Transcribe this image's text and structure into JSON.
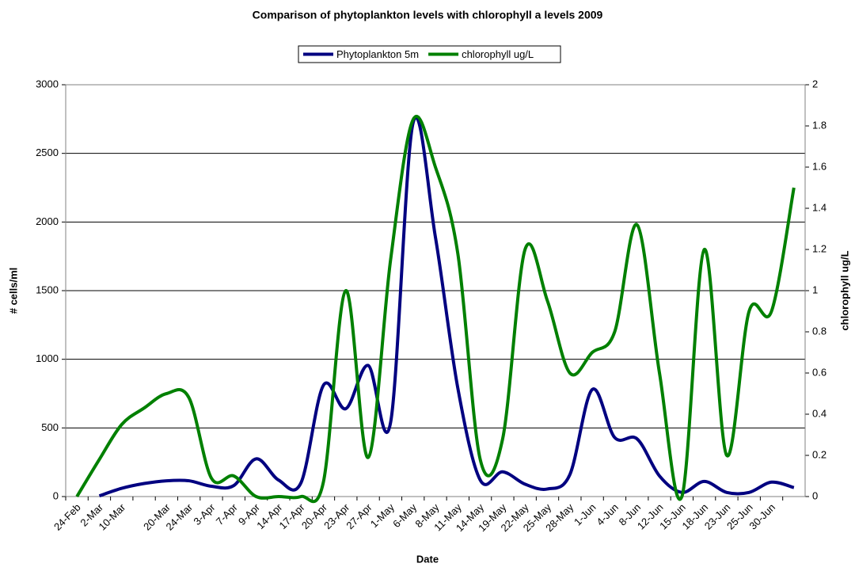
{
  "chart_data": {
    "type": "line",
    "title": "Comparison of phytoplankton levels with chlorophyll a levels 2009",
    "x_label": "Date",
    "y_label": "# cells/ml",
    "y2_label": "chlorophyll ug/L",
    "categories": [
      "24-Feb",
      "2-Mar",
      "10-Mar",
      null,
      "20-Mar",
      "24-Mar",
      "3-Apr",
      "7-Apr",
      "9-Apr",
      "14-Apr",
      "17-Apr",
      "20-Apr",
      "23-Apr",
      "27-Apr",
      "1-May",
      "6-May",
      "8-May",
      "11-May",
      "14-May",
      "19-May",
      "22-May",
      "25-May",
      "28-May",
      "1-Jun",
      "4-Jun",
      "8-Jun",
      "12-Jun",
      "15-Jun",
      "18-Jun",
      "23-Jun",
      "25-Jun",
      "30-Jun",
      null
    ],
    "series": [
      {
        "name": "Phytoplankton 5m",
        "color": "#000080",
        "axis": "y",
        "values": [
          null,
          5,
          60,
          95,
          115,
          115,
          75,
          80,
          275,
          120,
          100,
          810,
          640,
          955,
          540,
          2720,
          1890,
          790,
          120,
          180,
          90,
          55,
          160,
          780,
          430,
          420,
          150,
          30,
          110,
          30,
          30,
          105,
          65
        ]
      },
      {
        "name": "chlorophyll ug/L",
        "color": "#008000",
        "axis": "y2",
        "values": [
          0,
          0.18,
          0.35,
          0.43,
          0.5,
          0.48,
          0.09,
          0.1,
          0,
          0,
          0,
          0.07,
          1.0,
          0.19,
          1.15,
          1.83,
          1.6,
          1.18,
          0.18,
          0.28,
          1.2,
          0.95,
          0.6,
          0.7,
          0.8,
          1.32,
          0.6,
          0,
          1.2,
          0.2,
          0.9,
          0.9,
          1.5
        ]
      }
    ],
    "ylim": [
      0,
      3000
    ],
    "yticks": [
      0,
      500,
      1000,
      1500,
      2000,
      2500,
      3000
    ],
    "y2lim": [
      0,
      2
    ],
    "y2ticks": [
      0,
      0.2,
      0.4,
      0.6,
      0.8,
      1,
      1.2,
      1.4,
      1.6,
      1.8,
      2
    ],
    "grid": true,
    "legend": "top"
  }
}
